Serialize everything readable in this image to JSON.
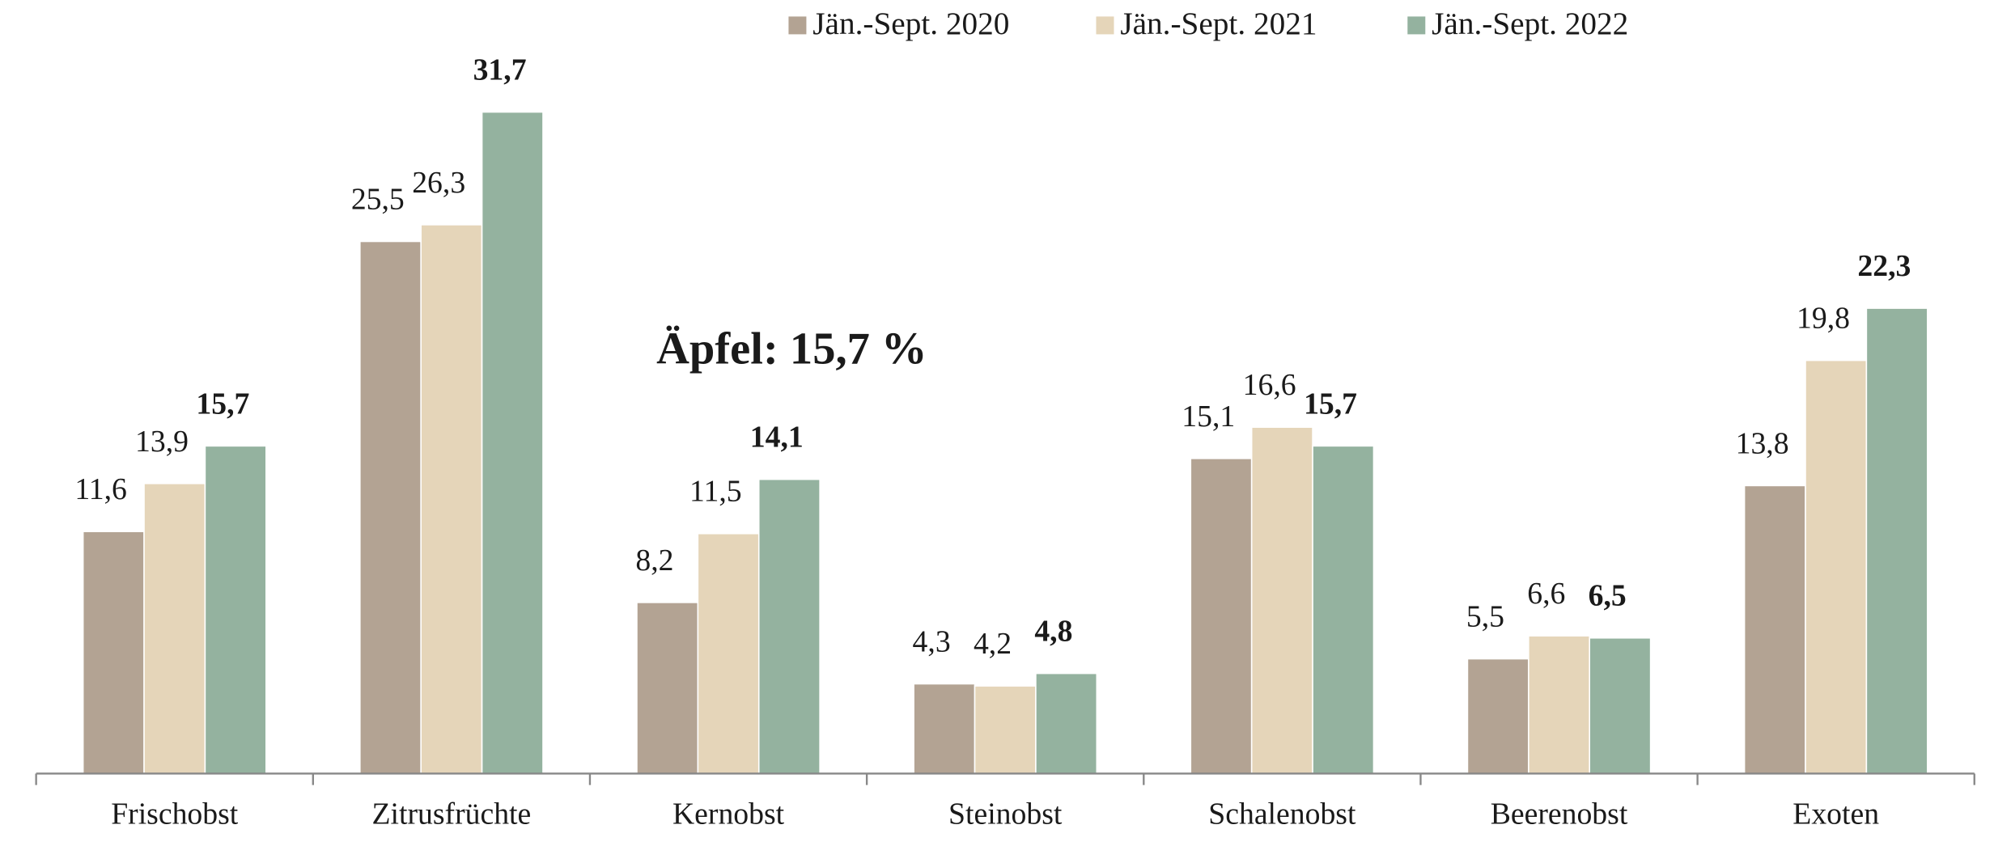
{
  "chart_data": {
    "type": "bar",
    "annotation": "Äpfel: 15,7 %",
    "categories": [
      "Frischobst",
      "Zitrusfrüchte",
      "Kernobst",
      "Steinobst",
      "Schalenobst",
      "Beerenobst",
      "Exoten"
    ],
    "series": [
      {
        "name": "Jän.-Sept. 2020",
        "color": "#b3a393",
        "values": [
          11.6,
          25.5,
          8.2,
          4.3,
          15.1,
          5.5,
          13.8
        ],
        "value_labels": [
          "11,6",
          "25,5",
          "8,2",
          "4,3",
          "15,1",
          "5,5",
          "13,8"
        ]
      },
      {
        "name": "Jän.-Sept. 2021",
        "color": "#e5d5b9",
        "values": [
          13.9,
          26.3,
          11.5,
          4.2,
          16.6,
          6.6,
          19.8
        ],
        "value_labels": [
          "13,9",
          "26,3",
          "11,5",
          "4,2",
          "16,6",
          "6,6",
          "19,8"
        ]
      },
      {
        "name": "Jän.-Sept. 2022",
        "color": "#94b29f",
        "values": [
          15.7,
          31.7,
          14.1,
          4.8,
          15.7,
          6.5,
          22.3
        ],
        "value_labels": [
          "15,7",
          "31,7",
          "14,1",
          "4,8",
          "15,7",
          "6,5",
          "22,3"
        ]
      }
    ],
    "ylim": [
      0,
      35
    ],
    "legend": "top"
  }
}
